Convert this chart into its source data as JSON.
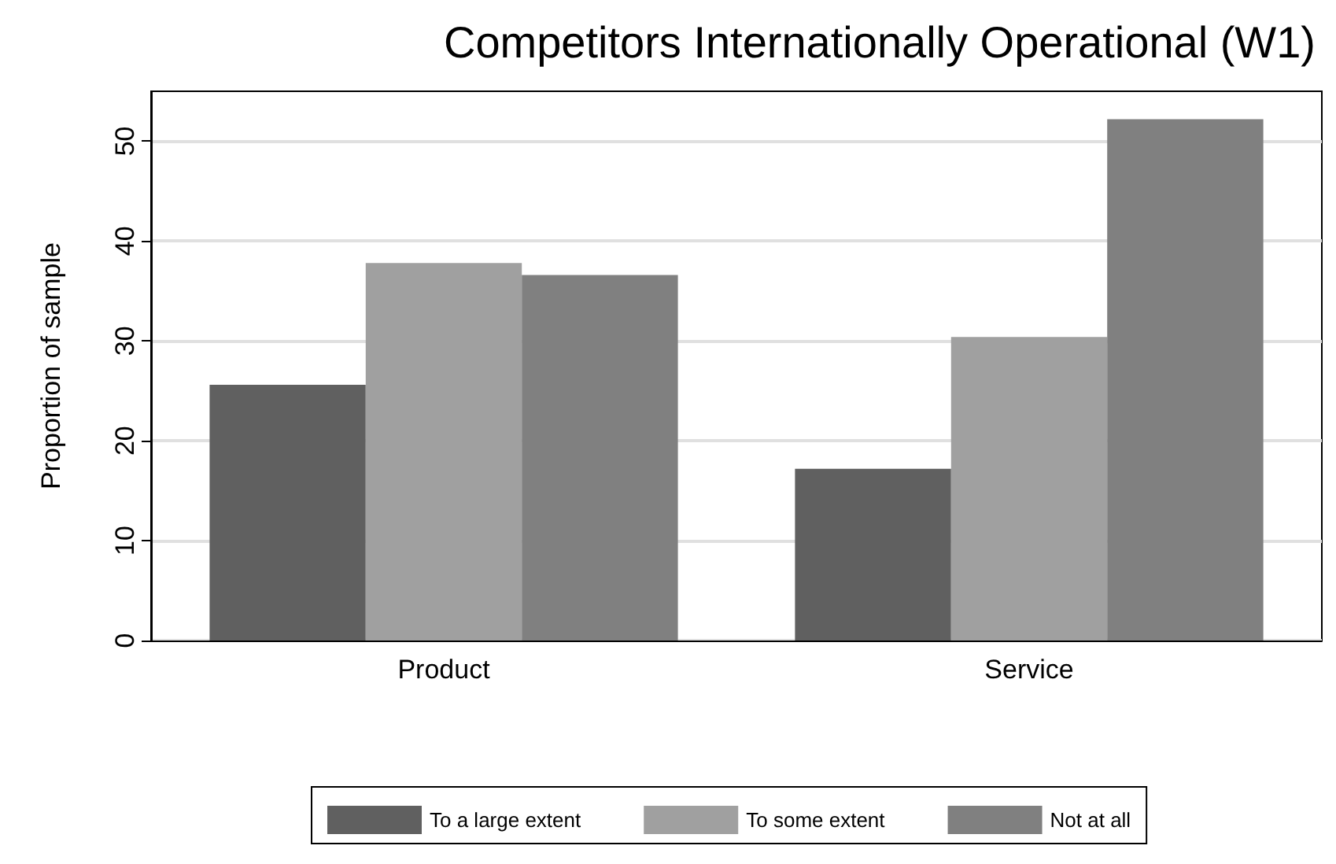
{
  "chart_data": {
    "type": "bar",
    "title": "Competitors Internationally Operational (W1)",
    "ylabel": "Proportion of sample",
    "categories": [
      "Product",
      "Service"
    ],
    "series": [
      {
        "name": "To a large extent",
        "color": "#606060",
        "values": [
          25.6,
          17.2
        ]
      },
      {
        "name": "To some extent",
        "color": "#a0a0a0",
        "values": [
          37.8,
          30.4
        ]
      },
      {
        "name": "Not at all",
        "color": "#808080",
        "values": [
          36.6,
          52.2
        ]
      }
    ],
    "ylim": [
      0,
      55
    ],
    "yticks": [
      0,
      10,
      20,
      30,
      40,
      50
    ],
    "grid": "y",
    "legend": "bottom"
  }
}
